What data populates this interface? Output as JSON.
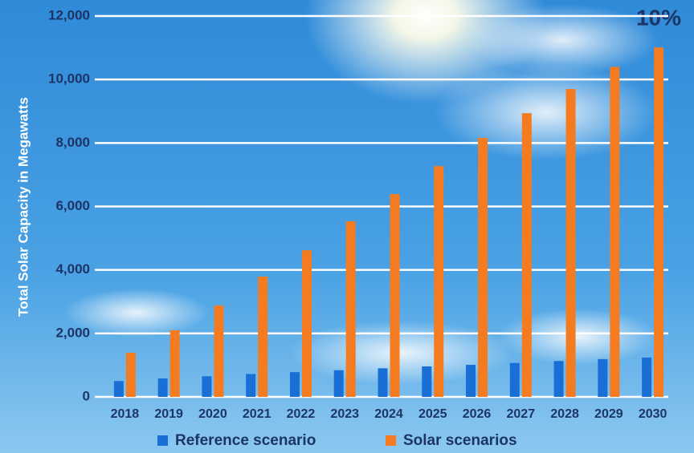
{
  "chart_data": {
    "type": "bar",
    "y_label": "Total Solar Capacity in Megawatts",
    "annotation": "10%",
    "categories": [
      "2018",
      "2019",
      "2020",
      "2021",
      "2022",
      "2023",
      "2024",
      "2025",
      "2026",
      "2027",
      "2028",
      "2029",
      "2030"
    ],
    "series": [
      {
        "name": "Reference scenario",
        "color": "#1a6fd6",
        "values": [
          500,
          580,
          650,
          720,
          780,
          840,
          900,
          960,
          1010,
          1070,
          1130,
          1190,
          1240
        ]
      },
      {
        "name": "Solar scenarios",
        "color": "#f47b20",
        "values": [
          1390,
          2100,
          2880,
          3790,
          4620,
          5530,
          6390,
          7270,
          8160,
          8940,
          9700,
          10400,
          11010
        ]
      }
    ],
    "ylim": [
      0,
      12000
    ],
    "yticks": [
      0,
      {
        "value": 2000,
        "label": "2,000"
      },
      {
        "value": 4000,
        "label": "4,000"
      },
      {
        "value": 6000,
        "label": "6,000"
      },
      {
        "value": 8000,
        "label": "8,000"
      },
      {
        "value": 10000,
        "label": "10,000"
      },
      {
        "value": 12000,
        "label": "12,000"
      }
    ],
    "grid": true
  }
}
